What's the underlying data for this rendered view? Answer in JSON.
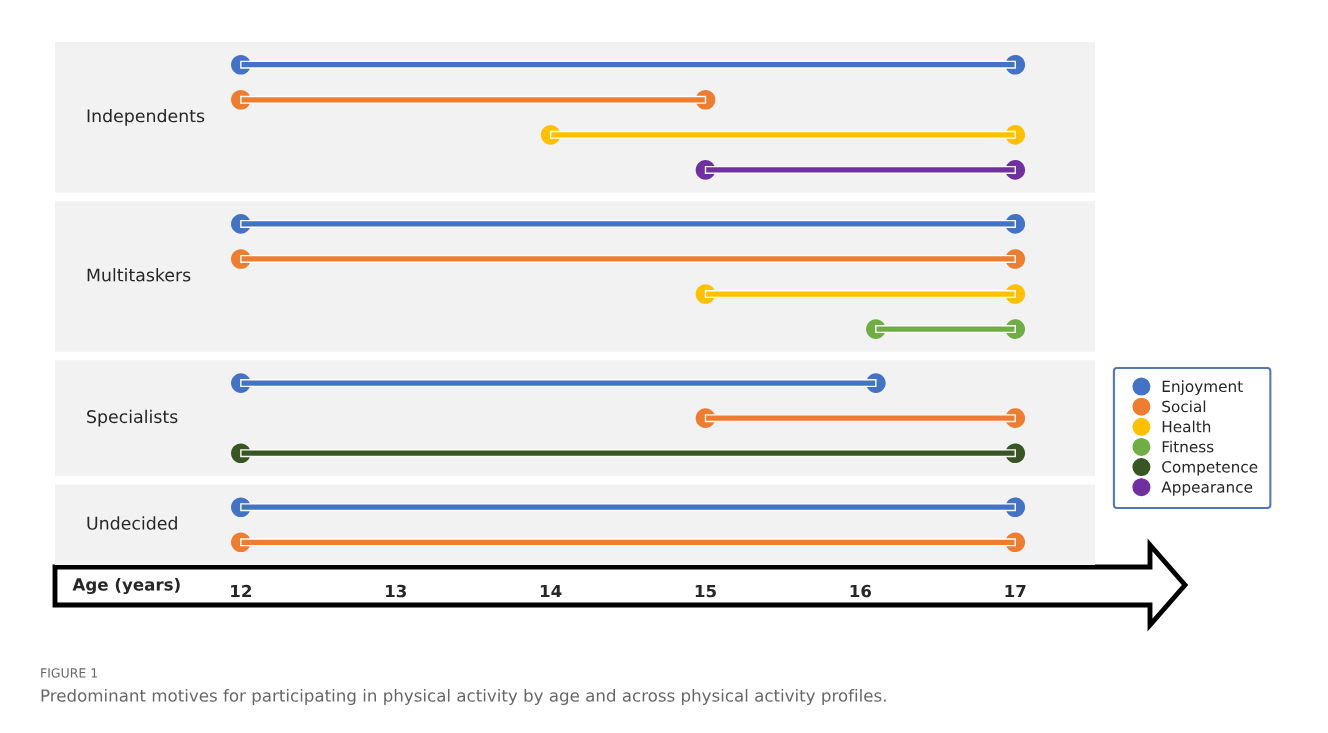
{
  "chart_data": {
    "type": "bar",
    "orientation": "horizontal",
    "marker": "circle",
    "legend": "right",
    "grid": false,
    "categories": [
      "Independents",
      "Multitaskers",
      "Specialists",
      "Undecided"
    ],
    "xlabel": "Age (years)",
    "xlim": [
      10.8,
      17.87
    ],
    "bands": [
      {
        "axis": "y",
        "from": "Independents",
        "to": "Independents",
        "color": "#f2f2f2"
      },
      {
        "axis": "y",
        "from": "Multitaskers",
        "to": "Multitaskers",
        "color": "#f2f2f2"
      },
      {
        "axis": "y",
        "from": "Specialists",
        "to": "Specialists",
        "color": "#f2f2f2"
      },
      {
        "axis": "y",
        "from": "Undecided",
        "to": "Undecided",
        "color": "#f2f2f2"
      }
    ],
    "xticks": [
      12,
      13,
      14,
      15,
      16,
      17
    ],
    "series": [
      {
        "name": "Enjoyment",
        "color": "#4472c4",
        "base": [
          12,
          12,
          12,
          12
        ],
        "values": [
          5,
          5,
          4.1,
          5
        ]
      },
      {
        "name": "Social",
        "color": "#ed7d31",
        "base": [
          12,
          12,
          15,
          12
        ],
        "values": [
          3,
          5,
          2,
          5
        ]
      },
      {
        "name": "Health",
        "color": "#ffc000",
        "base": [
          14,
          15,
          null,
          null
        ],
        "values": [
          3,
          2,
          null,
          null
        ]
      },
      {
        "name": "Fitness",
        "color": "#70ad47",
        "base": [
          null,
          16.1,
          null,
          null
        ],
        "values": [
          null,
          0.9,
          null,
          null
        ]
      },
      {
        "name": "Competence",
        "color": "#375623",
        "base": [
          null,
          null,
          12,
          null
        ],
        "values": [
          null,
          null,
          5,
          null
        ]
      },
      {
        "name": "Appearance",
        "color": "#7030a0",
        "base": [
          15,
          null,
          null,
          null
        ],
        "values": [
          2,
          null,
          null,
          null
        ]
      }
    ],
    "annotations": [
      "FIGURE 1",
      "Predominant motives for participating in physical activity by age and across physical activity profiles."
    ]
  }
}
